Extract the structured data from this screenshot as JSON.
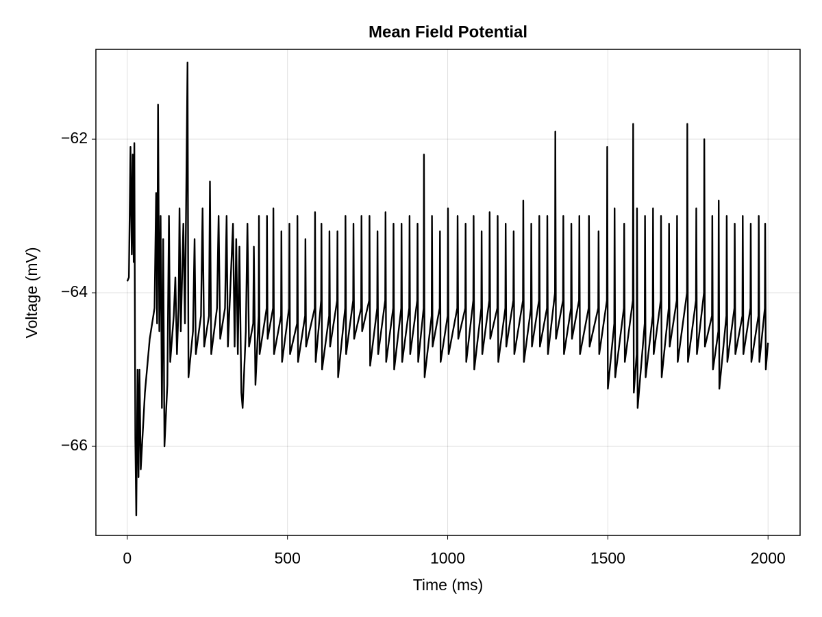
{
  "chart_data": {
    "type": "line",
    "title": "Mean Field Potential",
    "x_label": "Time (ms)",
    "y_label": "Voltage (mV)",
    "xlim": [
      -98,
      2100
    ],
    "ylim": [
      -67.16,
      -60.83
    ],
    "xticks": [
      0,
      500,
      1000,
      1500,
      2000
    ],
    "yticks": [
      {
        "value": -66,
        "label": "−66"
      },
      {
        "value": -64,
        "label": "−64"
      },
      {
        "value": -62,
        "label": "−62"
      }
    ],
    "grid": true,
    "x": [
      0,
      5,
      10,
      14,
      17,
      20,
      22,
      25,
      28,
      32,
      35,
      38,
      42,
      55,
      70,
      85,
      90,
      93,
      96,
      100,
      104,
      108,
      112,
      116,
      125,
      130,
      134,
      145,
      150,
      155,
      160,
      163,
      167,
      175,
      180,
      188,
      191,
      205,
      210,
      214,
      230,
      235,
      240,
      255,
      258,
      262,
      280,
      285,
      290,
      305,
      310,
      314,
      330,
      335,
      340,
      345,
      350,
      356,
      360,
      370,
      375,
      380,
      393,
      395,
      400,
      410,
      411,
      413,
      435,
      436,
      438,
      455,
      456,
      458,
      480,
      481,
      483,
      505,
      506,
      508,
      530,
      531,
      533,
      555,
      556,
      558,
      585,
      586,
      588,
      605,
      606,
      608,
      630,
      631,
      633,
      655,
      656,
      658,
      680,
      681,
      683,
      705,
      706,
      708,
      730,
      731,
      733,
      755,
      756,
      758,
      780,
      781,
      783,
      805,
      806,
      808,
      830,
      831,
      833,
      855,
      856,
      858,
      880,
      881,
      883,
      905,
      906,
      908,
      925,
      926,
      928,
      950,
      951,
      953,
      975,
      976,
      978,
      1000,
      1001,
      1003,
      1030,
      1031,
      1033,
      1055,
      1056,
      1058,
      1080,
      1081,
      1083,
      1105,
      1106,
      1108,
      1130,
      1131,
      1133,
      1155,
      1156,
      1158,
      1180,
      1181,
      1183,
      1205,
      1206,
      1208,
      1235,
      1236,
      1238,
      1260,
      1261,
      1263,
      1285,
      1286,
      1288,
      1310,
      1311,
      1313,
      1335,
      1336,
      1338,
      1360,
      1361,
      1363,
      1385,
      1386,
      1388,
      1410,
      1411,
      1413,
      1440,
      1441,
      1443,
      1470,
      1471,
      1473,
      1497,
      1498,
      1500,
      1520,
      1521,
      1523,
      1550,
      1551,
      1553,
      1578,
      1579,
      1581,
      1590,
      1591,
      1593,
      1615,
      1616,
      1618,
      1640,
      1641,
      1643,
      1665,
      1666,
      1668,
      1690,
      1691,
      1693,
      1715,
      1716,
      1718,
      1747,
      1748,
      1750,
      1775,
      1776,
      1778,
      1800,
      1801,
      1803,
      1825,
      1826,
      1828,
      1845,
      1846,
      1848,
      1870,
      1871,
      1873,
      1895,
      1896,
      1898,
      1920,
      1921,
      1923,
      1945,
      1946,
      1948,
      1970,
      1971,
      1973,
      1990,
      1991,
      1993,
      2000
    ],
    "series": [
      {
        "name": "Mean Field Potential",
        "color": "#000000",
        "values": [
          -63.85,
          -63.8,
          -62.1,
          -63.5,
          -62.2,
          -63.6,
          -62.05,
          -65.9,
          -66.9,
          -65,
          -66.4,
          -65,
          -66.3,
          -65.3,
          -64.6,
          -64.2,
          -62.7,
          -64.4,
          -61.55,
          -64.5,
          -63,
          -65.5,
          -63.3,
          -66,
          -65.2,
          -63,
          -64.9,
          -64.3,
          -63.8,
          -64.8,
          -64.2,
          -62.9,
          -64.5,
          -63.1,
          -64.4,
          -61.0,
          -65.1,
          -64.5,
          -63.3,
          -64.8,
          -64.3,
          -62.9,
          -64.7,
          -64.3,
          -62.55,
          -64.8,
          -64.2,
          -63.0,
          -64.6,
          -64.2,
          -63.0,
          -64.7,
          -63.1,
          -64.7,
          -63.3,
          -64.8,
          -63.4,
          -65.3,
          -65.5,
          -64.5,
          -63.1,
          -64.7,
          -64.4,
          -63.4,
          -65.2,
          -64.3,
          -63.0,
          -64.8,
          -64.2,
          -63.0,
          -64.6,
          -64.2,
          -62.9,
          -64.8,
          -64.3,
          -63.2,
          -64.9,
          -64.2,
          -63.1,
          -64.8,
          -64.4,
          -63.0,
          -64.9,
          -64.3,
          -63.3,
          -64.7,
          -64.2,
          -62.95,
          -64.9,
          -64.1,
          -63.1,
          -65.0,
          -64.3,
          -63.2,
          -64.7,
          -64.1,
          -63.2,
          -65.1,
          -64.2,
          -63.0,
          -64.8,
          -64.1,
          -63.1,
          -64.6,
          -64.2,
          -63.0,
          -64.5,
          -64.1,
          -63.0,
          -64.95,
          -64.2,
          -63.2,
          -64.8,
          -64.1,
          -62.95,
          -64.9,
          -64.2,
          -63.1,
          -65.0,
          -64.2,
          -63.1,
          -64.9,
          -64.2,
          -63.0,
          -64.8,
          -64.1,
          -63.1,
          -64.9,
          -64.2,
          -62.2,
          -65.1,
          -64.3,
          -63.0,
          -64.7,
          -64.2,
          -63.2,
          -64.9,
          -64.3,
          -62.9,
          -64.8,
          -64.2,
          -63.0,
          -64.6,
          -64.2,
          -63.1,
          -64.9,
          -64.1,
          -63.0,
          -65.0,
          -64.2,
          -63.2,
          -64.8,
          -64.1,
          -62.95,
          -64.6,
          -64.2,
          -63.0,
          -64.9,
          -64.2,
          -63.1,
          -64.7,
          -64.1,
          -63.2,
          -64.8,
          -64.1,
          -62.8,
          -64.9,
          -64.2,
          -63.1,
          -64.7,
          -64.1,
          -63.0,
          -64.7,
          -64.2,
          -63.0,
          -64.8,
          -64.0,
          -61.9,
          -64.6,
          -64.1,
          -63.0,
          -64.8,
          -64.2,
          -63.1,
          -64.6,
          -64.1,
          -63.0,
          -64.8,
          -64.2,
          -63.0,
          -64.7,
          -64.2,
          -63.2,
          -64.8,
          -64.1,
          -62.1,
          -65.25,
          -64.4,
          -62.9,
          -65.1,
          -64.2,
          -63.1,
          -64.9,
          -64.1,
          -61.8,
          -65.3,
          -64.8,
          -62.9,
          -65.5,
          -64.4,
          -63.0,
          -65.1,
          -64.3,
          -62.9,
          -64.8,
          -64.1,
          -63.0,
          -65.1,
          -64.2,
          -63.1,
          -64.7,
          -64.1,
          -63.0,
          -64.9,
          -64.0,
          -61.8,
          -64.9,
          -64.1,
          -62.9,
          -64.8,
          -64.0,
          -62.0,
          -64.7,
          -64.3,
          -63.0,
          -65.0,
          -64.5,
          -62.8,
          -65.25,
          -64.3,
          -63.0,
          -64.9,
          -64.2,
          -63.1,
          -64.8,
          -64.3,
          -63.0,
          -64.8,
          -64.2,
          -63.1,
          -64.9,
          -64.3,
          -63.0,
          -64.9,
          -64.2,
          -63.1,
          -65.0,
          -64.65
        ]
      }
    ]
  }
}
